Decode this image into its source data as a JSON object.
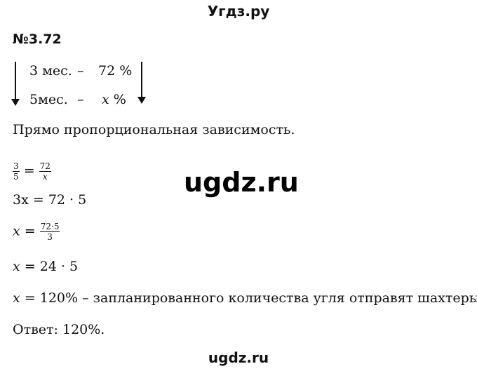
{
  "header": {
    "site_title": "Угдз.ру"
  },
  "problem": {
    "number": "№3.72"
  },
  "table": {
    "row1": {
      "left": "3 мес.",
      "dash": "–",
      "right": "72 %"
    },
    "row2": {
      "left": "5мес.",
      "dash": "–",
      "var": "x",
      "right": " %"
    }
  },
  "solution": {
    "statement": "Прямо пропорциональная зависимость.",
    "proportion": {
      "n1": "3",
      "d1": "5",
      "eq": "=",
      "n2": "72",
      "d2": "x"
    },
    "step1": {
      "lhs": "3x",
      "rhs": "= 72 · 5"
    },
    "step2": {
      "lhs": "x",
      "eq": "=",
      "num": "72·5",
      "den": "3"
    },
    "step3": {
      "lhs": "x",
      "rhs": "= 24 · 5"
    },
    "step4": {
      "lhs": "x",
      "rhs": "= 120% – запланированного количества угля отправят шахтеры."
    },
    "answer": "Ответ: 120%."
  },
  "watermark": "ugdz.ru",
  "footer": {
    "site": "ugdz.ru"
  }
}
